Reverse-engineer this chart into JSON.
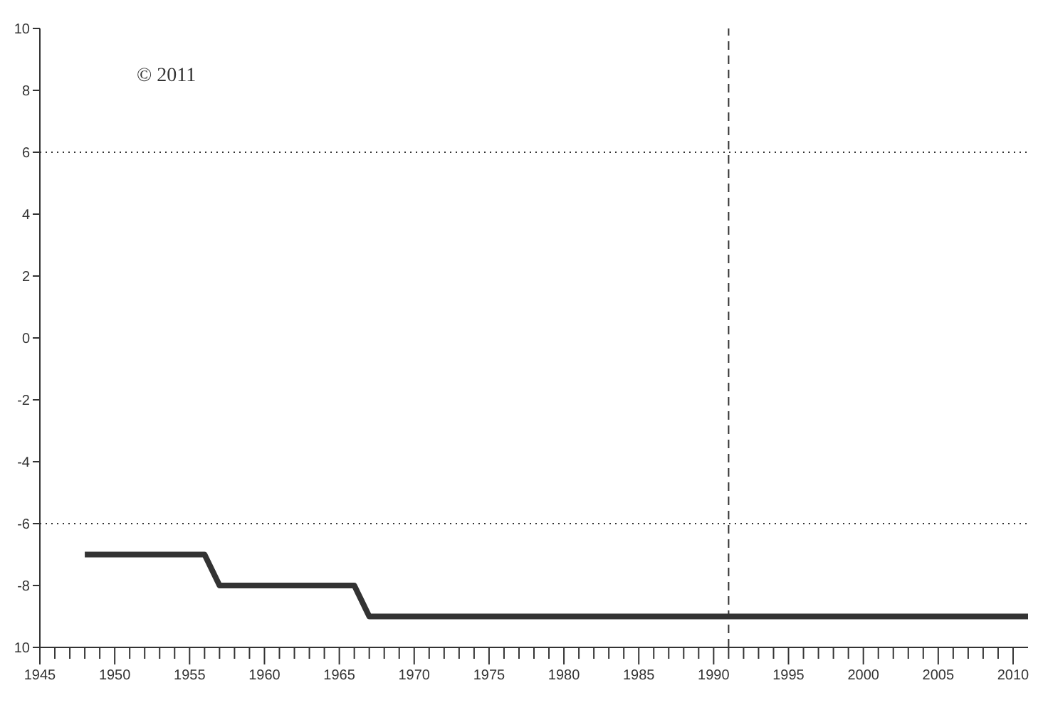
{
  "chart_data": {
    "type": "line",
    "x": [
      1948,
      1956,
      1957,
      1966,
      1967,
      2011
    ],
    "series": [
      {
        "color": "#333333",
        "values": [
          -7,
          -7,
          -8,
          -8,
          -9,
          -9
        ]
      }
    ],
    "xlim": [
      1945,
      2011
    ],
    "xticks": [
      1945,
      {
        "value": 1946,
        "label": null
      },
      {
        "value": 1947,
        "label": null
      },
      {
        "value": 1948,
        "label": null
      },
      {
        "value": 1949,
        "label": null
      },
      1950,
      {
        "value": 1951,
        "label": null
      },
      {
        "value": 1952,
        "label": null
      },
      {
        "value": 1953,
        "label": null
      },
      {
        "value": 1954,
        "label": null
      },
      1955,
      {
        "value": 1956,
        "label": null
      },
      {
        "value": 1957,
        "label": null
      },
      {
        "value": 1958,
        "label": null
      },
      {
        "value": 1959,
        "label": null
      },
      1960,
      {
        "value": 1961,
        "label": null
      },
      {
        "value": 1962,
        "label": null
      },
      {
        "value": 1963,
        "label": null
      },
      {
        "value": 1964,
        "label": null
      },
      1965,
      {
        "value": 1966,
        "label": null
      },
      {
        "value": 1967,
        "label": null
      },
      {
        "value": 1968,
        "label": null
      },
      {
        "value": 1969,
        "label": null
      },
      1970,
      {
        "value": 1971,
        "label": null
      },
      {
        "value": 1972,
        "label": null
      },
      {
        "value": 1973,
        "label": null
      },
      {
        "value": 1974,
        "label": null
      },
      1975,
      {
        "value": 1976,
        "label": null
      },
      {
        "value": 1977,
        "label": null
      },
      {
        "value": 1978,
        "label": null
      },
      {
        "value": 1979,
        "label": null
      },
      1980,
      {
        "value": 1981,
        "label": null
      },
      {
        "value": 1982,
        "label": null
      },
      {
        "value": 1983,
        "label": null
      },
      {
        "value": 1984,
        "label": null
      },
      1985,
      {
        "value": 1986,
        "label": null
      },
      {
        "value": 1987,
        "label": null
      },
      {
        "value": 1988,
        "label": null
      },
      {
        "value": 1989,
        "label": null
      },
      1990,
      {
        "value": 1991,
        "label": null
      },
      {
        "value": 1992,
        "label": null
      },
      {
        "value": 1993,
        "label": null
      },
      {
        "value": 1994,
        "label": null
      },
      1995,
      {
        "value": 1996,
        "label": null
      },
      {
        "value": 1997,
        "label": null
      },
      {
        "value": 1998,
        "label": null
      },
      {
        "value": 1999,
        "label": null
      },
      2000,
      {
        "value": 2001,
        "label": null
      },
      {
        "value": 2002,
        "label": null
      },
      {
        "value": 2003,
        "label": null
      },
      {
        "value": 2004,
        "label": null
      },
      2005,
      {
        "value": 2006,
        "label": null
      },
      {
        "value": 2007,
        "label": null
      },
      {
        "value": 2008,
        "label": null
      },
      {
        "value": 2009,
        "label": null
      },
      2010
    ],
    "ylim": [
      -10,
      10
    ],
    "yticks": [
      {
        "value": -10,
        "label": "10"
      },
      -8,
      -6,
      -4,
      -2,
      0,
      2,
      4,
      6,
      8,
      10
    ],
    "ref_lines": [
      {
        "axis": "y",
        "value": 6,
        "line_style": "dotted",
        "color": "#333333"
      },
      {
        "axis": "y",
        "value": -6,
        "line_style": "dotted",
        "color": "#333333"
      },
      {
        "axis": "x",
        "value": 1991,
        "line_style": "dashed",
        "color": "#333333"
      }
    ],
    "annotations": [
      "© 2011"
    ],
    "marker": "none",
    "line_style": "solid"
  }
}
